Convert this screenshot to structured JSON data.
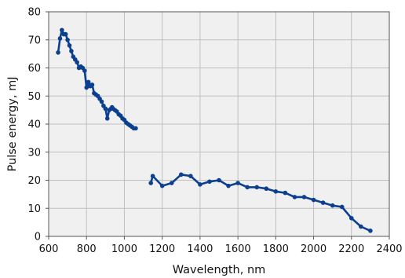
{
  "chart_data": {
    "type": "line",
    "title": "",
    "xlabel": "Wavelength, nm",
    "ylabel": "Pulse energy, mJ",
    "xlim": [
      600,
      2400
    ],
    "ylim": [
      0,
      80
    ],
    "x_ticks": [
      600,
      800,
      1000,
      1200,
      1400,
      1600,
      1800,
      2000,
      2200,
      2400
    ],
    "y_ticks": [
      0,
      10,
      20,
      30,
      40,
      50,
      60,
      70,
      80
    ],
    "grid": true,
    "legend": "none",
    "colors": {
      "series": "#0d3f8f",
      "plot_background": "#f0f0f0",
      "grid": "#bfbfbf",
      "frame": "#555555"
    },
    "series": [
      {
        "x": [
          650,
          660,
          670,
          680,
          690,
          700,
          710,
          720,
          730,
          740,
          750,
          760,
          770,
          780,
          790,
          800,
          810,
          815,
          820,
          830,
          840,
          850,
          860,
          870,
          880,
          890,
          900,
          910,
          920,
          930,
          935,
          940,
          950,
          960,
          970,
          980,
          990,
          1000,
          1010,
          1020,
          1030,
          1040,
          1050,
          1060
        ],
        "y": [
          65.5,
          70.5,
          73.5,
          72.0,
          72.0,
          70.0,
          68.0,
          66.0,
          64.0,
          63.0,
          62.0,
          60.0,
          60.5,
          60.0,
          59.0,
          53.0,
          55.0,
          54.0,
          53.5,
          54.0,
          51.0,
          50.5,
          50.0,
          49.0,
          48.0,
          46.5,
          45.5,
          42.0,
          45.0,
          45.5,
          46.0,
          45.5,
          45.0,
          44.5,
          43.5,
          43.0,
          42.0,
          41.5,
          40.5,
          40.0,
          39.5,
          39.0,
          38.5,
          38.5
        ]
      },
      {
        "x": [
          1140,
          1150,
          1200,
          1250,
          1300,
          1350,
          1400,
          1450,
          1500,
          1550,
          1600,
          1650,
          1700,
          1750,
          1800,
          1850,
          1900,
          1950,
          2000,
          2050,
          2100,
          2150,
          2200,
          2250,
          2300
        ],
        "y": [
          19.0,
          21.5,
          18.0,
          19.0,
          22.0,
          21.5,
          18.5,
          19.5,
          20.0,
          18.0,
          19.0,
          17.5,
          17.5,
          17.0,
          16.0,
          15.5,
          14.0,
          14.0,
          13.0,
          12.0,
          11.0,
          10.5,
          6.5,
          3.5,
          2.0
        ]
      }
    ]
  }
}
